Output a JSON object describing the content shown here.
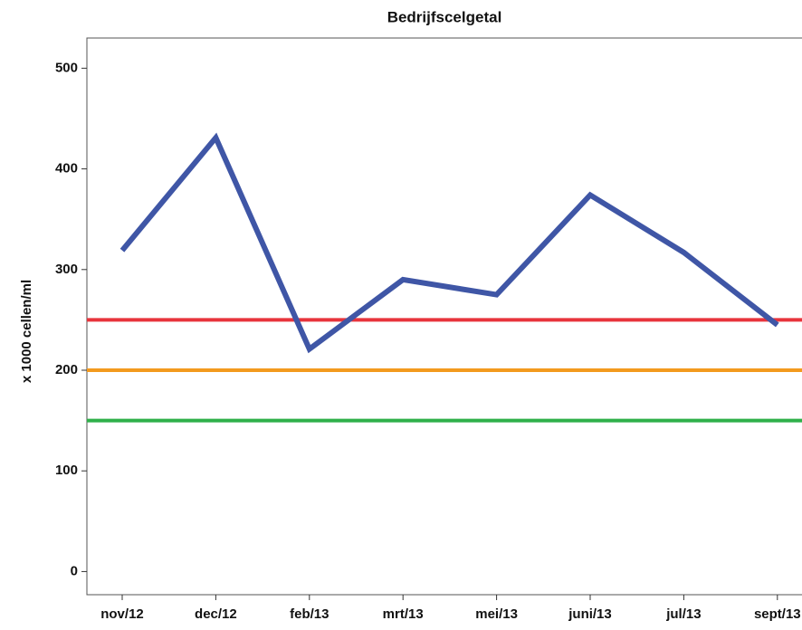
{
  "chart_data": {
    "type": "line",
    "title": "Bedrijfscelgetal",
    "ylabel": "x 1000 cellen/ml",
    "categories": [
      "nov/12",
      "dec/12",
      "feb/13",
      "mrt/13",
      "mei/13",
      "juni/13",
      "jul/13",
      "sept/13"
    ],
    "series": [
      {
        "color": "#3f56a6",
        "values": [
          319,
          431,
          221,
          290,
          275,
          374,
          317,
          245
        ]
      }
    ],
    "reference_lines": [
      {
        "value": 250,
        "color": "#e8343c"
      },
      {
        "value": 200,
        "color": "#f39a1e"
      },
      {
        "value": 150,
        "color": "#2fb04a"
      }
    ],
    "ylim": [
      -23,
      530
    ],
    "yticks": [
      0,
      100,
      200,
      300,
      400,
      500
    ]
  }
}
